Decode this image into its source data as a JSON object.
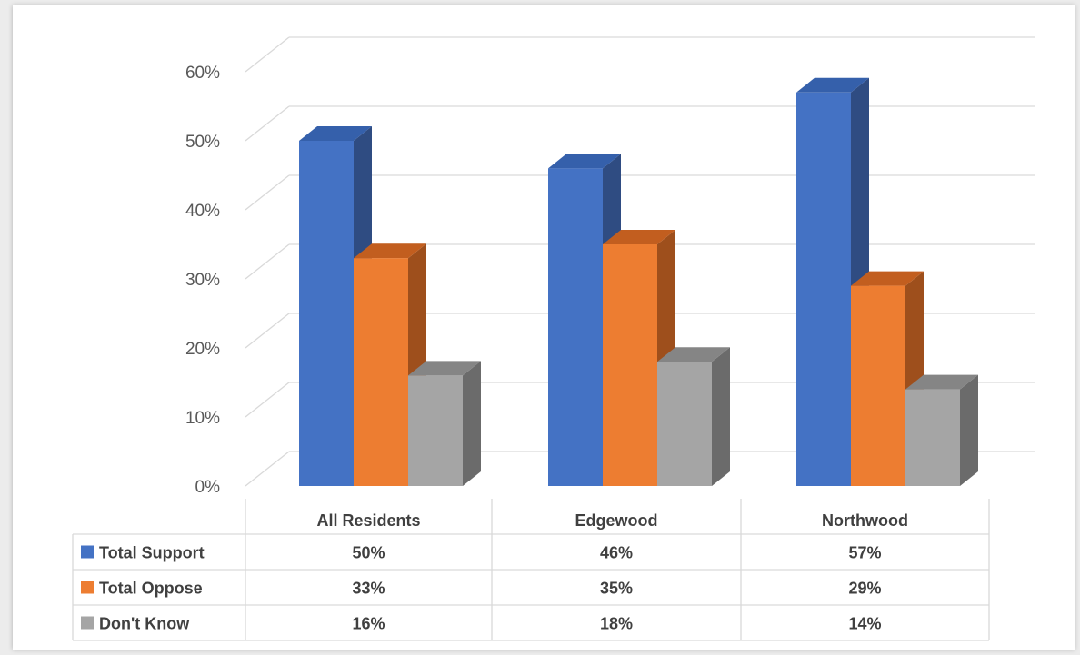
{
  "chart_data": {
    "type": "bar",
    "categories": [
      "All Residents",
      "Edgewood",
      "Northwood"
    ],
    "series": [
      {
        "name": "Total Support",
        "values": [
          50,
          46,
          57
        ],
        "labels": [
          "50%",
          "46%",
          "57%"
        ],
        "color": "#4472C4",
        "side_color": "#2F4C82",
        "top_color": "#3560AB"
      },
      {
        "name": "Total Oppose",
        "values": [
          33,
          35,
          29
        ],
        "labels": [
          "33%",
          "35%",
          "29%"
        ],
        "color": "#ED7D31",
        "side_color": "#9E4F1C",
        "top_color": "#C25E1F"
      },
      {
        "name": "Don't Know",
        "values": [
          16,
          18,
          14
        ],
        "labels": [
          "16%",
          "18%",
          "14%"
        ],
        "color": "#A5A5A5",
        "side_color": "#6B6B6B",
        "top_color": "#858585"
      }
    ],
    "y_ticks": [
      "0%",
      "10%",
      "20%",
      "30%",
      "40%",
      "50%",
      "60%"
    ],
    "ylim": [
      0,
      60
    ],
    "grid": true,
    "legend": "data-table",
    "style": "3d-clustered-column-with-data-table"
  }
}
